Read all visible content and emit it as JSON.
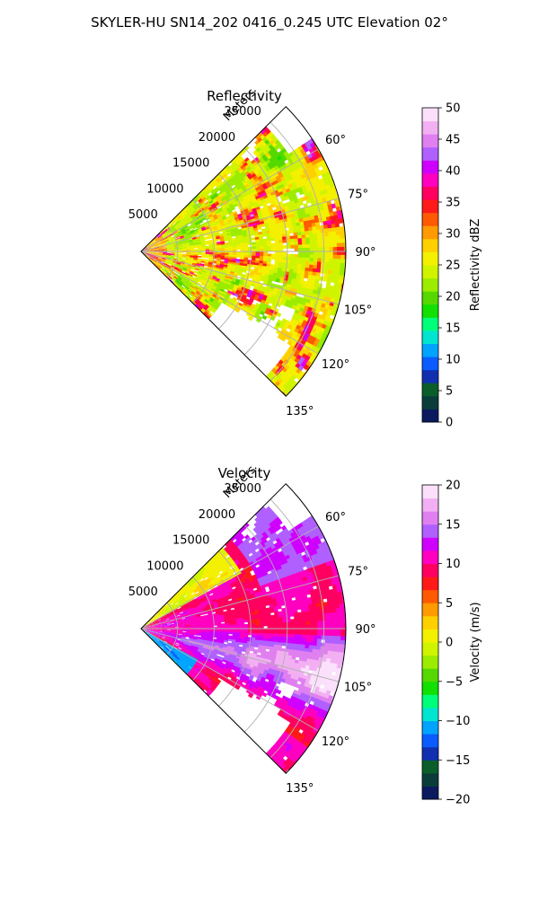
{
  "suptitle": "SKYLER-HU  SN14_202  0416_0.245 UTC Elevation 02°",
  "chart_data": [
    {
      "type": "heatmap",
      "title": "Reflectivity",
      "projection": "polar sector (radar PPI)",
      "azimuth_range_deg": [
        45,
        135
      ],
      "azimuth_ticks": [
        "60°",
        "75°",
        "90°",
        "105°",
        "120°",
        "135°"
      ],
      "radial_label": "Meters",
      "radial_ticks": [
        "5000",
        "10000",
        "15000",
        "20000",
        "25000"
      ],
      "radial_max_m": 28000,
      "grid": true,
      "colorbar": {
        "label": "Reflectivity dBZ",
        "range": [
          0,
          50
        ],
        "ticks": [
          "0",
          "5",
          "10",
          "15",
          "20",
          "25",
          "30",
          "35",
          "40",
          "45",
          "50"
        ],
        "colors": [
          "#0b1a5e",
          "#0a3d3a",
          "#0b5e2a",
          "#1030b0",
          "#0a5cff",
          "#00a4ff",
          "#00e5d0",
          "#00ff7a",
          "#12e000",
          "#55d800",
          "#9cec00",
          "#d0f400",
          "#f3f000",
          "#ffd000",
          "#ff9a00",
          "#ff5a00",
          "#ff1a1a",
          "#ff0060",
          "#ff00c0",
          "#d000ff",
          "#b060ff",
          "#e080f0",
          "#f2b0f2",
          "#fbe0fb"
        ]
      },
      "dominant_values_dbz": "20–30",
      "peak_values_dbz": "35–42"
    },
    {
      "type": "heatmap",
      "title": "Velocity",
      "projection": "polar sector (radar PPI)",
      "azimuth_range_deg": [
        45,
        135
      ],
      "azimuth_ticks": [
        "60°",
        "75°",
        "90°",
        "105°",
        "120°",
        "135°"
      ],
      "radial_label": "Meters",
      "radial_ticks": [
        "5000",
        "10000",
        "15000",
        "20000",
        "25000"
      ],
      "radial_max_m": 28000,
      "grid": true,
      "colorbar": {
        "label": "Velocity (m/s)",
        "range": [
          -20,
          20
        ],
        "ticks": [
          "−20",
          "−15",
          "−10",
          "−5",
          "0",
          "5",
          "10",
          "15",
          "20"
        ],
        "colors": [
          "#0b1a5e",
          "#0a3d3a",
          "#0b5e2a",
          "#1030b0",
          "#0a5cff",
          "#00a4ff",
          "#00e5d0",
          "#00ff7a",
          "#12e000",
          "#55d800",
          "#9cec00",
          "#d0f400",
          "#f3f000",
          "#ffd000",
          "#ff9a00",
          "#ff5a00",
          "#ff1a1a",
          "#ff0060",
          "#ff00c0",
          "#d000ff",
          "#b060ff",
          "#e080f0",
          "#f2b0f2",
          "#fbe0fb"
        ]
      },
      "dominant_values_ms": "5–12",
      "low_az_values_ms": "−12 to 0",
      "high_az_values_ms": "12–16"
    }
  ]
}
